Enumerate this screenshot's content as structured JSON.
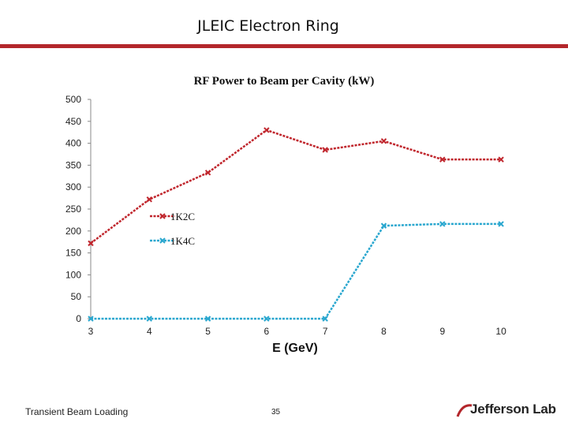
{
  "slide": {
    "title": "JLEIC Electron Ring",
    "footer_left": "Transient Beam Loading",
    "page_number": "35",
    "logo_text": "Jefferson Lab",
    "accent_color": "#b3262b"
  },
  "chart_data": {
    "type": "line",
    "title": "RF Power to Beam per Cavity (kW)",
    "xlabel": "E (GeV)",
    "ylabel": "",
    "categories": [
      "3",
      "4",
      "5",
      "6",
      "7",
      "8",
      "9",
      "10"
    ],
    "ylim": [
      0,
      500
    ],
    "yticks": [
      0,
      50,
      100,
      150,
      200,
      250,
      300,
      350,
      400,
      450,
      500
    ],
    "grid": false,
    "legend_position": "center-left",
    "series": [
      {
        "name": "1K2C",
        "color": "#c0262d",
        "values": [
          172,
          272,
          333,
          430,
          385,
          405,
          363,
          363
        ]
      },
      {
        "name": "1K4C",
        "color": "#2aa7cf",
        "values": [
          0,
          0,
          0,
          0,
          0,
          212,
          216,
          216
        ]
      }
    ]
  }
}
